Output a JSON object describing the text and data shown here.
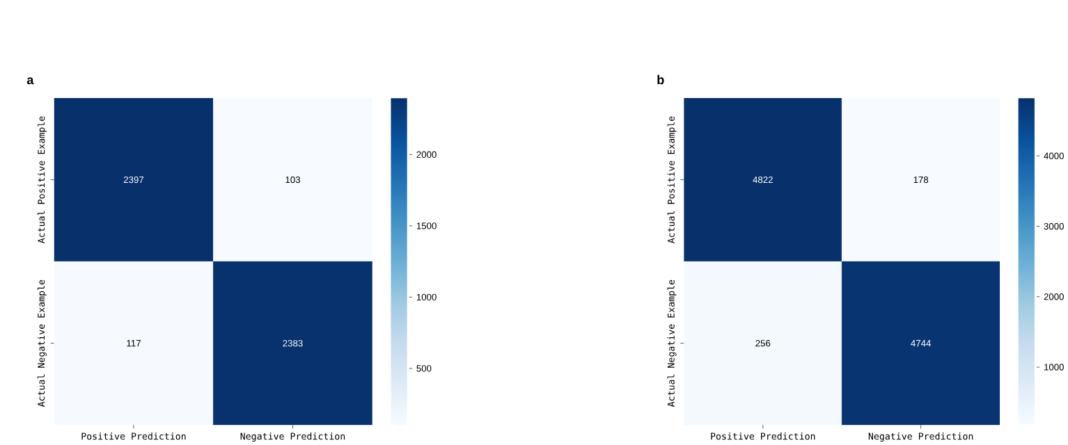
{
  "chart_data": [
    {
      "type": "heatmap",
      "title": "a",
      "categories": [
        "Positive Prediction",
        "Negative Prediction"
      ],
      "y_categories": [
        "Actual Positive Example",
        "Actual Negative Example"
      ],
      "cells": [
        [
          2397,
          103
        ],
        [
          117,
          2383
        ]
      ],
      "clim": [
        103,
        2397
      ],
      "cticks": [
        500,
        1000,
        1500,
        2000
      ],
      "data_labels": true
    },
    {
      "type": "heatmap",
      "title": "b",
      "categories": [
        "Positive Prediction",
        "Negative Prediction"
      ],
      "y_categories": [
        "Actual Positive Example",
        "Actual Negative Example"
      ],
      "cells": [
        [
          4822,
          178
        ],
        [
          256,
          4744
        ]
      ],
      "clim": [
        178,
        4822
      ],
      "cticks": [
        1000,
        2000,
        3000,
        4000
      ],
      "data_labels": true
    }
  ]
}
